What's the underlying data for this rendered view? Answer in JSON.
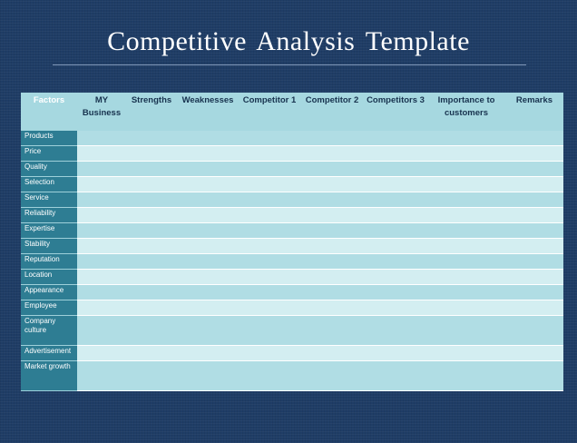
{
  "title": "Competitive Analysis Template",
  "table": {
    "headers": [
      "Factors",
      "MY Business",
      "Strengths",
      "Weaknesses",
      "Competitor 1",
      "Competitor 2",
      "Competitors 3",
      "Importance to customers",
      "Remarks"
    ],
    "factors": [
      "Products",
      "Price",
      "Quality",
      "Selection",
      "Service",
      "Reliability",
      "Expertise",
      "Stability",
      "Reputation",
      "Location",
      "Appearance",
      "Employee",
      "Company culture",
      "Advertisement",
      "Market growth"
    ]
  },
  "colors": {
    "background": "#1f3d66",
    "factor_column": "#2e7d93",
    "row_band_a": "#b0dde4",
    "row_band_b": "#d3eef1"
  }
}
